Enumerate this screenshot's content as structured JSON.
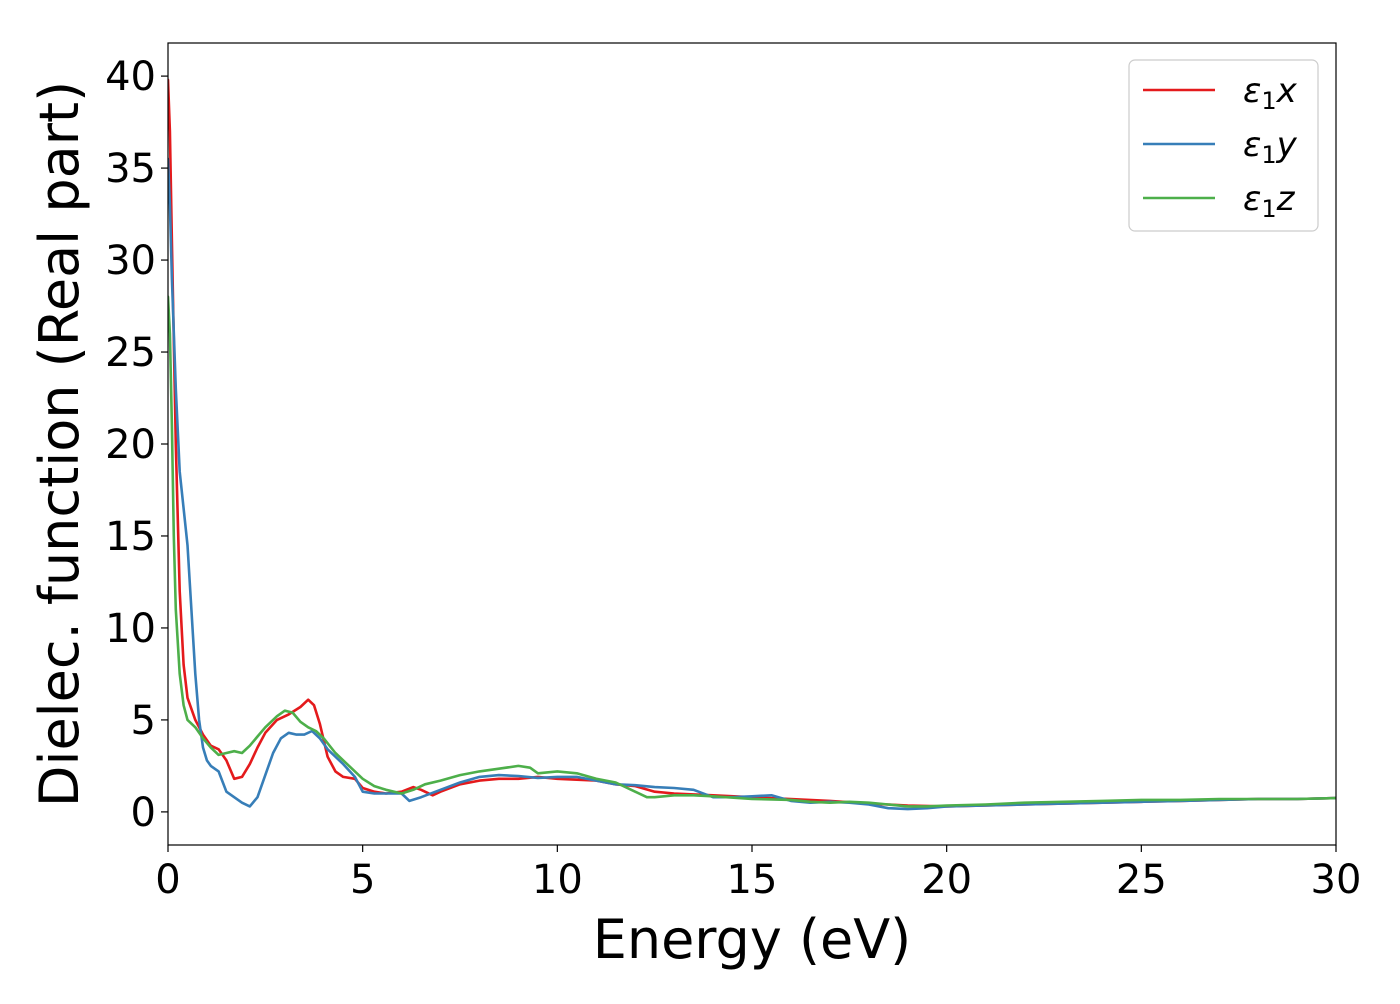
{
  "chart_data": {
    "type": "line",
    "title": "",
    "xlabel": "Energy (eV)",
    "ylabel": "Dielec. function (Real part)",
    "xlim": [
      0,
      30
    ],
    "ylim": [
      -1.8,
      41.8
    ],
    "xticks": [
      0,
      5,
      10,
      15,
      20,
      25,
      30
    ],
    "yticks": [
      0,
      5,
      10,
      15,
      20,
      25,
      30,
      35,
      40
    ],
    "grid": false,
    "legend_position": "top-right",
    "series": [
      {
        "name": "ε1x",
        "legend_base": "ε",
        "legend_sub": "1",
        "legend_suffix": "x",
        "color": "#e41a1c",
        "x": [
          0,
          0.05,
          0.1,
          0.2,
          0.3,
          0.4,
          0.5,
          0.7,
          0.9,
          1.1,
          1.3,
          1.5,
          1.7,
          1.9,
          2.1,
          2.3,
          2.5,
          2.8,
          3.1,
          3.4,
          3.6,
          3.75,
          3.9,
          4.1,
          4.3,
          4.5,
          4.8,
          5.0,
          5.3,
          5.6,
          6.0,
          6.3,
          6.5,
          6.8,
          7.0,
          7.5,
          8.0,
          8.5,
          9.0,
          9.5,
          10.0,
          10.5,
          11.0,
          11.5,
          12.0,
          12.5,
          13.0,
          14.0,
          15.0,
          16.0,
          17.0,
          18.0,
          19.0,
          20.0,
          21.0,
          22.0,
          23.0,
          24.0,
          25.0,
          26.0,
          27.0,
          28.0,
          29.0,
          30.0
        ],
        "values": [
          39.8,
          37.0,
          31.0,
          20.0,
          12.0,
          8.0,
          6.2,
          5.0,
          4.2,
          3.6,
          3.4,
          2.8,
          1.8,
          1.9,
          2.6,
          3.5,
          4.3,
          5.0,
          5.3,
          5.7,
          6.1,
          5.8,
          4.8,
          3.0,
          2.2,
          1.9,
          1.8,
          1.3,
          1.1,
          1.0,
          1.1,
          1.35,
          1.2,
          0.9,
          1.1,
          1.5,
          1.7,
          1.8,
          1.8,
          1.9,
          1.8,
          1.75,
          1.7,
          1.5,
          1.4,
          1.1,
          1.0,
          0.9,
          0.8,
          0.7,
          0.6,
          0.45,
          0.35,
          0.3,
          0.35,
          0.4,
          0.45,
          0.5,
          0.55,
          0.6,
          0.65,
          0.7,
          0.7,
          0.75
        ]
      },
      {
        "name": "ε1y",
        "legend_base": "ε",
        "legend_sub": "1",
        "legend_suffix": "y",
        "color": "#377eb8",
        "x": [
          0,
          0.05,
          0.1,
          0.2,
          0.3,
          0.4,
          0.5,
          0.6,
          0.7,
          0.8,
          0.9,
          1.0,
          1.1,
          1.3,
          1.5,
          1.7,
          1.9,
          2.1,
          2.3,
          2.5,
          2.7,
          2.9,
          3.1,
          3.3,
          3.5,
          3.7,
          3.9,
          4.1,
          4.3,
          4.5,
          4.8,
          5.0,
          5.3,
          5.6,
          6.0,
          6.2,
          6.5,
          7.0,
          7.5,
          8.0,
          8.5,
          9.0,
          9.5,
          10.0,
          10.5,
          11.0,
          11.5,
          12.0,
          12.5,
          13.0,
          13.5,
          14.0,
          14.5,
          15.0,
          15.5,
          16.0,
          16.5,
          17.0,
          17.5,
          18.0,
          18.5,
          19.0,
          19.5,
          20.0,
          21.0,
          22.0,
          23.0,
          24.0,
          25.0,
          26.0,
          27.0,
          28.0,
          29.0,
          30.0
        ],
        "values": [
          35.5,
          33.0,
          29.0,
          23.0,
          18.5,
          16.5,
          14.5,
          11.0,
          7.5,
          5.0,
          3.5,
          2.8,
          2.5,
          2.2,
          1.1,
          0.8,
          0.5,
          0.3,
          0.8,
          2.0,
          3.2,
          4.0,
          4.3,
          4.2,
          4.2,
          4.4,
          4.0,
          3.4,
          3.0,
          2.6,
          1.9,
          1.1,
          1.0,
          1.0,
          1.0,
          0.6,
          0.8,
          1.2,
          1.6,
          1.9,
          2.0,
          1.95,
          1.85,
          1.9,
          1.9,
          1.7,
          1.5,
          1.45,
          1.35,
          1.3,
          1.2,
          0.8,
          0.8,
          0.85,
          0.9,
          0.6,
          0.5,
          0.55,
          0.5,
          0.4,
          0.2,
          0.15,
          0.2,
          0.3,
          0.35,
          0.4,
          0.45,
          0.5,
          0.55,
          0.6,
          0.65,
          0.7,
          0.7,
          0.75
        ]
      },
      {
        "name": "ε1z",
        "legend_base": "ε",
        "legend_sub": "1",
        "legend_suffix": "z",
        "color": "#4daf4a",
        "x": [
          0,
          0.05,
          0.1,
          0.15,
          0.2,
          0.3,
          0.4,
          0.5,
          0.7,
          0.9,
          1.1,
          1.3,
          1.5,
          1.7,
          1.9,
          2.1,
          2.3,
          2.5,
          2.8,
          3.0,
          3.2,
          3.4,
          3.6,
          3.8,
          4.0,
          4.3,
          4.6,
          5.0,
          5.3,
          5.6,
          6.0,
          6.3,
          6.6,
          7.0,
          7.5,
          8.0,
          8.5,
          9.0,
          9.3,
          9.5,
          10.0,
          10.5,
          11.0,
          11.5,
          12.0,
          12.3,
          12.5,
          13.0,
          13.5,
          14.0,
          15.0,
          16.0,
          16.5,
          17.0,
          17.5,
          18.0,
          18.5,
          19.0,
          19.5,
          20.0,
          21.0,
          22.0,
          23.0,
          24.0,
          25.0,
          26.0,
          27.0,
          28.0,
          29.0,
          30.0
        ],
        "values": [
          28.0,
          26.0,
          21.0,
          15.0,
          11.0,
          7.5,
          5.8,
          5.0,
          4.6,
          4.0,
          3.5,
          3.1,
          3.2,
          3.3,
          3.2,
          3.6,
          4.1,
          4.6,
          5.2,
          5.5,
          5.4,
          4.9,
          4.6,
          4.4,
          4.0,
          3.2,
          2.6,
          1.8,
          1.4,
          1.2,
          1.0,
          1.2,
          1.5,
          1.7,
          2.0,
          2.2,
          2.35,
          2.5,
          2.4,
          2.1,
          2.2,
          2.1,
          1.8,
          1.6,
          1.1,
          0.8,
          0.8,
          0.9,
          0.9,
          0.85,
          0.7,
          0.65,
          0.55,
          0.5,
          0.55,
          0.5,
          0.4,
          0.3,
          0.3,
          0.35,
          0.4,
          0.5,
          0.55,
          0.6,
          0.65,
          0.65,
          0.7,
          0.7,
          0.7,
          0.75
        ]
      }
    ]
  }
}
